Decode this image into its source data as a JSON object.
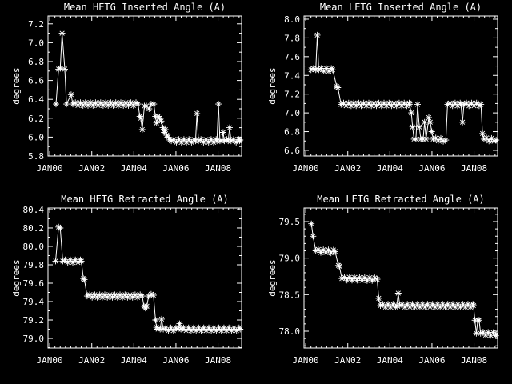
{
  "window": {
    "background": "#000000",
    "foreground": "#ffffff"
  },
  "chart_data": [
    {
      "type": "line",
      "title": "Mean HETG Inserted Angle (A)",
      "ylabel": "degrees",
      "marker": "asterisk-icon",
      "grid": false,
      "legend": null,
      "xlim": [
        -0.08,
        9.12
      ],
      "x_ticks": {
        "values": [
          0,
          2,
          4,
          6,
          8
        ],
        "labels": [
          "JAN00",
          "JAN02",
          "JAN04",
          "JAN06",
          "JAN08"
        ]
      },
      "x_minor_step": 0.25,
      "ylim": [
        5.8,
        7.283
      ],
      "y_ticks": {
        "values": [
          5.8,
          6.0,
          6.2,
          6.4,
          6.6,
          6.8,
          7.0,
          7.2
        ],
        "labels": [
          "5.8",
          "6.0",
          "6.2",
          "6.4",
          "6.6",
          "6.8",
          "7.0",
          "7.2"
        ]
      },
      "y_minor_step": 0.1,
      "plateau_marker_step": 0.12,
      "plateau_jitter": 0.015,
      "points": [
        [
          0.3,
          6.35
        ],
        [
          0.42,
          6.72
        ],
        [
          0.5,
          6.73
        ],
        [
          0.59,
          7.1
        ],
        [
          0.72,
          6.72
        ],
        [
          0.8,
          6.35
        ],
        [
          1.02,
          6.45
        ],
        [
          1.1,
          6.35
        ],
        [
          4.2,
          6.35
        ],
        [
          4.28,
          6.22
        ],
        [
          4.33,
          6.2
        ],
        [
          4.4,
          6.08
        ],
        [
          4.5,
          6.33
        ],
        [
          4.6,
          6.33
        ],
        [
          4.72,
          6.3
        ],
        [
          4.82,
          6.35
        ],
        [
          4.95,
          6.35
        ],
        [
          5.02,
          6.22
        ],
        [
          5.08,
          6.15
        ],
        [
          5.15,
          6.22
        ],
        [
          5.22,
          6.2
        ],
        [
          5.3,
          6.17
        ],
        [
          5.38,
          6.1
        ],
        [
          5.44,
          6.05
        ],
        [
          5.5,
          6.08
        ],
        [
          5.56,
          6.02
        ],
        [
          5.63,
          6.0
        ],
        [
          5.7,
          5.97
        ],
        [
          5.78,
          5.96
        ],
        [
          6.93,
          5.96
        ],
        [
          7.0,
          6.25
        ],
        [
          7.07,
          5.96
        ],
        [
          7.95,
          5.96
        ],
        [
          8.02,
          6.35
        ],
        [
          8.09,
          5.96
        ],
        [
          8.18,
          5.96
        ],
        [
          8.24,
          6.05
        ],
        [
          8.3,
          5.96
        ],
        [
          8.48,
          5.96
        ],
        [
          8.55,
          6.1
        ],
        [
          8.62,
          5.96
        ],
        [
          9.02,
          5.96
        ],
        [
          9.05,
          5.97
        ]
      ]
    },
    {
      "type": "line",
      "title": "Mean LETG Inserted Angle (A)",
      "ylabel": "degrees",
      "marker": "asterisk-icon",
      "grid": false,
      "legend": null,
      "xlim": [
        -0.08,
        9.12
      ],
      "x_ticks": {
        "values": [
          0,
          2,
          4,
          6,
          8
        ],
        "labels": [
          "JAN00",
          "JAN02",
          "JAN04",
          "JAN06",
          "JAN08"
        ]
      },
      "x_minor_step": 0.25,
      "ylim": [
        6.54,
        8.034
      ],
      "y_ticks": {
        "values": [
          6.6,
          6.8,
          7.0,
          7.2,
          7.4,
          7.6,
          7.8,
          8.0
        ],
        "labels": [
          "6.6",
          "6.8",
          "7.0",
          "7.2",
          "7.4",
          "7.6",
          "7.8",
          "8.0"
        ]
      },
      "y_minor_step": 0.1,
      "plateau_marker_step": 0.12,
      "plateau_jitter": 0.015,
      "points": [
        [
          0.25,
          7.46
        ],
        [
          0.48,
          7.46
        ],
        [
          0.55,
          7.83
        ],
        [
          0.62,
          7.46
        ],
        [
          1.28,
          7.46
        ],
        [
          1.48,
          7.28
        ],
        [
          1.53,
          7.27
        ],
        [
          1.68,
          7.09
        ],
        [
          4.93,
          7.09
        ],
        [
          5.02,
          7.0
        ],
        [
          5.08,
          6.85
        ],
        [
          5.15,
          6.72
        ],
        [
          5.24,
          6.72
        ],
        [
          5.32,
          7.09
        ],
        [
          5.4,
          6.85
        ],
        [
          5.47,
          6.72
        ],
        [
          5.58,
          6.72
        ],
        [
          5.65,
          6.9
        ],
        [
          5.72,
          6.72
        ],
        [
          5.85,
          6.95
        ],
        [
          5.92,
          6.9
        ],
        [
          5.99,
          6.8
        ],
        [
          6.06,
          6.72
        ],
        [
          6.66,
          6.71
        ],
        [
          6.74,
          7.09
        ],
        [
          7.38,
          7.09
        ],
        [
          7.45,
          6.9
        ],
        [
          7.52,
          7.09
        ],
        [
          8.33,
          7.09
        ],
        [
          8.4,
          6.78
        ],
        [
          8.47,
          6.72
        ],
        [
          9.05,
          6.71
        ]
      ]
    },
    {
      "type": "line",
      "title": "Mean HETG Retracted Angle (A)",
      "ylabel": "degrees",
      "marker": "asterisk-icon",
      "grid": false,
      "legend": null,
      "xlim": [
        -0.08,
        9.12
      ],
      "x_ticks": {
        "values": [
          0,
          2,
          4,
          6,
          8
        ],
        "labels": [
          "JAN00",
          "JAN02",
          "JAN04",
          "JAN06",
          "JAN08"
        ]
      },
      "x_minor_step": 0.25,
      "ylim": [
        78.896,
        80.417
      ],
      "y_ticks": {
        "values": [
          79.0,
          79.2,
          79.4,
          79.6,
          79.8,
          80.0,
          80.2,
          80.4
        ],
        "labels": [
          "79.0",
          "79.2",
          "79.4",
          "79.6",
          "79.8",
          "80.0",
          "80.2",
          "80.4"
        ]
      },
      "y_minor_step": 0.1,
      "plateau_marker_step": 0.12,
      "plateau_jitter": 0.015,
      "points": [
        [
          0.28,
          79.84
        ],
        [
          0.42,
          80.21
        ],
        [
          0.5,
          80.2
        ],
        [
          0.62,
          79.84
        ],
        [
          1.5,
          79.84
        ],
        [
          1.6,
          79.65
        ],
        [
          1.65,
          79.64
        ],
        [
          1.78,
          79.46
        ],
        [
          4.4,
          79.46
        ],
        [
          4.48,
          79.35
        ],
        [
          4.55,
          79.33
        ],
        [
          4.62,
          79.35
        ],
        [
          4.7,
          79.46
        ],
        [
          4.93,
          79.47
        ],
        [
          5.03,
          79.2
        ],
        [
          5.08,
          79.12
        ],
        [
          5.15,
          79.1
        ],
        [
          5.25,
          79.1
        ],
        [
          5.32,
          79.21
        ],
        [
          5.4,
          79.1
        ],
        [
          6.1,
          79.1
        ],
        [
          6.17,
          79.16
        ],
        [
          6.24,
          79.1
        ],
        [
          9.05,
          79.1
        ]
      ]
    },
    {
      "type": "line",
      "title": "Mean LETG Retracted Angle (A)",
      "ylabel": "degrees",
      "marker": "asterisk-icon",
      "grid": false,
      "legend": null,
      "xlim": [
        -0.08,
        9.12
      ],
      "x_ticks": {
        "values": [
          0,
          2,
          4,
          6,
          8
        ],
        "labels": [
          "JAN00",
          "JAN02",
          "JAN04",
          "JAN06",
          "JAN08"
        ]
      },
      "x_minor_step": 0.25,
      "ylim": [
        77.77,
        79.686
      ],
      "y_ticks": {
        "values": [
          78.0,
          78.5,
          79.0,
          79.5
        ],
        "labels": [
          "78.0",
          "78.5",
          "79.0",
          "79.5"
        ]
      },
      "y_minor_step": 0.1,
      "plateau_marker_step": 0.12,
      "plateau_jitter": 0.02,
      "points": [
        [
          0.27,
          79.47
        ],
        [
          0.35,
          79.3
        ],
        [
          0.48,
          79.1
        ],
        [
          1.4,
          79.09
        ],
        [
          1.55,
          78.9
        ],
        [
          1.6,
          78.89
        ],
        [
          1.72,
          78.72
        ],
        [
          3.4,
          78.71
        ],
        [
          3.47,
          78.45
        ],
        [
          3.55,
          78.35
        ],
        [
          4.33,
          78.35
        ],
        [
          4.4,
          78.52
        ],
        [
          4.47,
          78.35
        ],
        [
          7.97,
          78.35
        ],
        [
          8.04,
          78.15
        ],
        [
          8.11,
          77.97
        ],
        [
          8.18,
          78.15
        ],
        [
          8.24,
          78.15
        ],
        [
          8.31,
          77.97
        ],
        [
          9.05,
          77.96
        ]
      ]
    }
  ]
}
